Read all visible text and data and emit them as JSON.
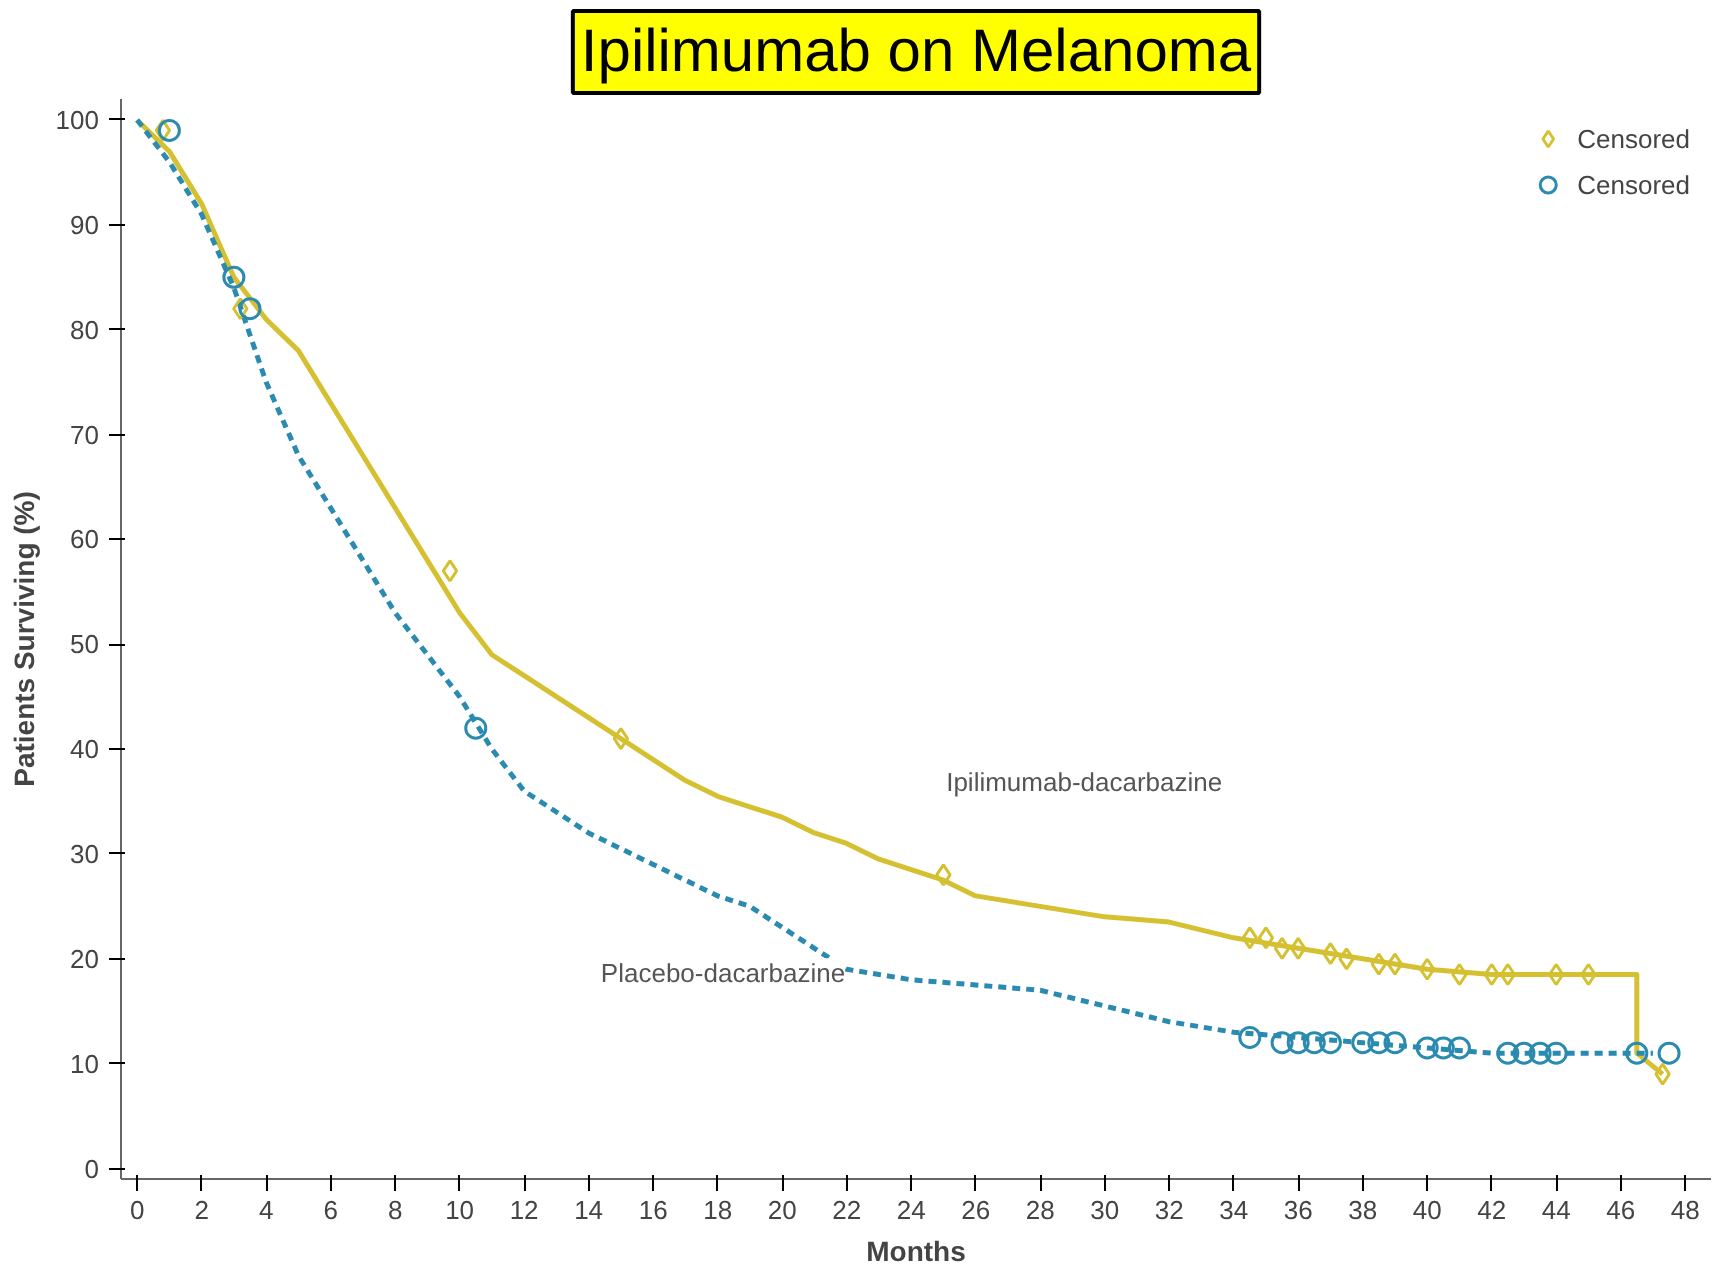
{
  "chart_data": {
    "type": "line",
    "title": "Ipilimumab on Melanoma",
    "xlabel": "Months",
    "ylabel": "Patients Surviving (%)",
    "xlim": [
      -0.5,
      48.8
    ],
    "ylim": [
      -1,
      102
    ],
    "xticks": [
      0,
      2,
      4,
      6,
      8,
      10,
      12,
      14,
      16,
      18,
      20,
      22,
      24,
      26,
      28,
      30,
      32,
      34,
      36,
      38,
      40,
      42,
      44,
      46,
      48
    ],
    "yticks": [
      0,
      10,
      20,
      30,
      40,
      50,
      60,
      70,
      80,
      90,
      100
    ],
    "grid": false,
    "legend": "top right",
    "series": [
      {
        "color": "#d4c030",
        "line_style": "solid",
        "x": [
          0,
          1,
          2,
          3,
          4,
          5,
          6,
          7,
          8,
          9,
          10,
          11,
          12,
          13,
          14,
          15,
          16,
          17,
          18,
          19,
          20,
          21,
          22,
          23,
          24,
          25,
          26,
          28,
          30,
          32,
          34,
          36,
          38,
          40,
          42,
          44,
          46.5,
          46.5,
          47.3
        ],
        "values": [
          100,
          97,
          92,
          85,
          81,
          78,
          73,
          68,
          63,
          58,
          53,
          49,
          47,
          45,
          43,
          41,
          39,
          37,
          35.5,
          34.5,
          33.5,
          32,
          31,
          29.5,
          28.5,
          27.5,
          26,
          25,
          24,
          23.5,
          22,
          21,
          20,
          19,
          18.5,
          18.5,
          18.5,
          11,
          9
        ]
      },
      {
        "color": "#2a8ab0",
        "line_style": "dashed",
        "x": [
          0,
          1,
          2,
          3,
          4,
          5,
          6,
          7,
          8,
          9,
          10,
          11,
          12,
          13,
          14,
          15,
          16,
          17,
          18,
          19,
          20,
          21,
          22,
          23,
          24,
          26,
          28,
          30,
          32,
          34,
          36,
          38,
          40,
          42,
          44,
          47
        ],
        "values": [
          100,
          96,
          91,
          84,
          75,
          68,
          63,
          58,
          53,
          49,
          45,
          40,
          36,
          34,
          32,
          30.5,
          29,
          27.5,
          26,
          25,
          23,
          21,
          19,
          18.5,
          18,
          17.5,
          17,
          15.5,
          14,
          13,
          12.5,
          12,
          11.5,
          11,
          11,
          11
        ]
      },
      {
        "type": "scatter",
        "name": "Censored",
        "color": "#d4c030",
        "marker": "diamond",
        "x": [
          0.8,
          3.2,
          9.7,
          15,
          25,
          34.5,
          35,
          35.5,
          36,
          37,
          37.5,
          38.5,
          39,
          40,
          41,
          42,
          42.5,
          44,
          45,
          47.3
        ],
        "values": [
          99,
          82,
          57,
          41,
          28,
          22,
          22,
          21,
          21,
          20.5,
          20,
          19.5,
          19.5,
          19,
          18.5,
          18.5,
          18.5,
          18.5,
          18.5,
          9
        ]
      },
      {
        "type": "scatter",
        "name": "Censored",
        "color": "#2a8ab0",
        "marker": "circle",
        "x": [
          1,
          3,
          3.5,
          10.5,
          34.5,
          35.5,
          36,
          36.5,
          37,
          38,
          38.5,
          39,
          40,
          40.5,
          41,
          42.5,
          43,
          43.5,
          44,
          46.5,
          47.5
        ],
        "values": [
          99,
          85,
          82,
          42,
          12.5,
          12,
          12,
          12,
          12,
          12,
          12,
          12,
          11.5,
          11.5,
          11.5,
          11,
          11,
          11,
          11,
          11,
          11
        ]
      }
    ],
    "annotations": [
      "Ipilimumab-dacarbazine",
      "Placebo-dacarbazine"
    ]
  }
}
